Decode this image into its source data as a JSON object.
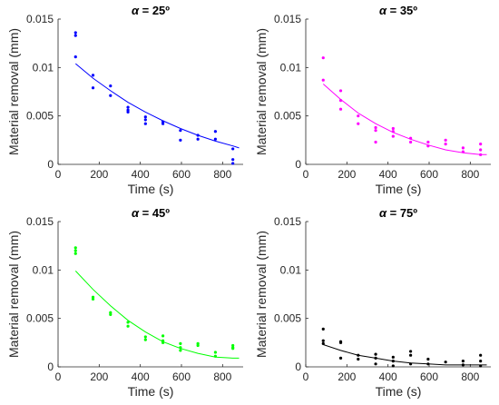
{
  "figure": {
    "background": "#ffffff"
  },
  "chart_data": [
    {
      "type": "scatter",
      "title": "α = 25º",
      "title_symbol": "α",
      "title_rest": " = 25º",
      "xlabel": "Time (s)",
      "ylabel": "Material removal (mm)",
      "xlim": [
        0,
        900
      ],
      "ylim": [
        0,
        0.015
      ],
      "xticks": [
        0,
        200,
        400,
        600,
        800
      ],
      "xtick_labels": [
        "0",
        "200",
        "400",
        "600",
        "800"
      ],
      "yticks": [
        0,
        0.005,
        0.01,
        0.015
      ],
      "ytick_labels": [
        "0",
        "0.005",
        "0.01",
        "0.015"
      ],
      "grid": false,
      "legend": "none",
      "color": "#0000ff",
      "series": [
        {
          "kind": "points",
          "x": [
            85,
            85,
            85,
            170,
            170,
            255,
            255,
            340,
            340,
            340,
            425,
            425,
            425,
            510,
            510,
            595,
            595,
            680,
            680,
            765,
            765,
            850,
            850,
            850
          ],
          "y": [
            0.0136,
            0.0133,
            0.0111,
            0.0092,
            0.0079,
            0.0081,
            0.0071,
            0.0059,
            0.0056,
            0.0054,
            0.0049,
            0.0046,
            0.0042,
            0.0044,
            0.0042,
            0.0035,
            0.0025,
            0.003,
            0.0026,
            0.0034,
            0.0026,
            0.0016,
            0.0005,
            0.0001
          ]
        },
        {
          "kind": "fit",
          "x": [
            85,
            170,
            255,
            340,
            425,
            510,
            595,
            680,
            765,
            850,
            880
          ],
          "y": [
            0.0104,
            0.0089,
            0.0076,
            0.0064,
            0.0054,
            0.0045,
            0.0037,
            0.003,
            0.0024,
            0.0019,
            0.0017
          ]
        }
      ]
    },
    {
      "type": "scatter",
      "title": "α = 35º",
      "title_symbol": "α",
      "title_rest": " = 35º",
      "xlabel": "Time (s)",
      "ylabel": "Material removal (mm)",
      "xlim": [
        0,
        900
      ],
      "ylim": [
        0,
        0.015
      ],
      "xticks": [
        0,
        200,
        400,
        600,
        800
      ],
      "xtick_labels": [
        "0",
        "200",
        "400",
        "600",
        "800"
      ],
      "yticks": [
        0,
        0.005,
        0.01,
        0.015
      ],
      "ytick_labels": [
        "0",
        "0.005",
        "0.01",
        "0.015"
      ],
      "grid": false,
      "legend": "none",
      "color": "#ff00ff",
      "series": [
        {
          "kind": "points",
          "x": [
            85,
            85,
            170,
            170,
            170,
            255,
            255,
            340,
            340,
            340,
            425,
            425,
            425,
            510,
            510,
            595,
            595,
            680,
            680,
            765,
            765,
            850,
            850,
            850
          ],
          "y": [
            0.011,
            0.0087,
            0.0076,
            0.0066,
            0.0057,
            0.005,
            0.0042,
            0.0038,
            0.0035,
            0.0023,
            0.0037,
            0.0034,
            0.0029,
            0.0027,
            0.0023,
            0.0023,
            0.0019,
            0.0025,
            0.0021,
            0.0017,
            0.0013,
            0.0021,
            0.0015,
            0.001
          ]
        },
        {
          "kind": "fit",
          "x": [
            85,
            170,
            255,
            340,
            425,
            510,
            595,
            680,
            765,
            850,
            880
          ],
          "y": [
            0.0083,
            0.0067,
            0.0053,
            0.0042,
            0.0033,
            0.0026,
            0.002,
            0.0015,
            0.0012,
            0.001,
            0.001
          ]
        }
      ]
    },
    {
      "type": "scatter",
      "title": "α = 45º",
      "title_symbol": "α",
      "title_rest": " = 45º",
      "xlabel": "Time (s)",
      "ylabel": "Material removal (mm)",
      "xlim": [
        0,
        900
      ],
      "ylim": [
        0,
        0.015
      ],
      "xticks": [
        0,
        200,
        400,
        600,
        800
      ],
      "xtick_labels": [
        "0",
        "200",
        "400",
        "600",
        "800"
      ],
      "yticks": [
        0,
        0.005,
        0.01,
        0.015
      ],
      "ytick_labels": [
        "0",
        "0.005",
        "0.01",
        "0.015"
      ],
      "grid": false,
      "legend": "none",
      "color": "#00ff00",
      "series": [
        {
          "kind": "points",
          "x": [
            85,
            85,
            85,
            170,
            170,
            255,
            255,
            340,
            340,
            425,
            425,
            510,
            510,
            510,
            595,
            595,
            595,
            680,
            680,
            765,
            765,
            850,
            850,
            850
          ],
          "y": [
            0.0123,
            0.012,
            0.0117,
            0.0072,
            0.007,
            0.0056,
            0.0054,
            0.0046,
            0.0042,
            0.0031,
            0.0028,
            0.0032,
            0.0027,
            0.0025,
            0.0024,
            0.002,
            0.0017,
            0.0024,
            0.0022,
            0.0015,
            0.0011,
            0.0022,
            0.002,
            0.0019
          ]
        },
        {
          "kind": "fit",
          "x": [
            85,
            170,
            255,
            340,
            425,
            510,
            595,
            680,
            765,
            850,
            880
          ],
          "y": [
            0.0099,
            0.008,
            0.0063,
            0.0048,
            0.0036,
            0.0026,
            0.0019,
            0.0014,
            0.001,
            0.0009,
            0.0009
          ]
        }
      ]
    },
    {
      "type": "scatter",
      "title": "α = 75º",
      "title_symbol": "α",
      "title_rest": " = 75º",
      "xlabel": "Time (s)",
      "ylabel": "Material removal (mm)",
      "xlim": [
        0,
        900
      ],
      "ylim": [
        0,
        0.015
      ],
      "xticks": [
        0,
        200,
        400,
        600,
        800
      ],
      "xtick_labels": [
        "0",
        "200",
        "400",
        "600",
        "800"
      ],
      "yticks": [
        0,
        0.005,
        0.01,
        0.015
      ],
      "ytick_labels": [
        "0",
        "0.005",
        "0.01",
        "0.015"
      ],
      "grid": false,
      "legend": "none",
      "color": "#000000",
      "series": [
        {
          "kind": "points",
          "x": [
            85,
            85,
            85,
            170,
            170,
            170,
            255,
            255,
            340,
            340,
            340,
            425,
            425,
            425,
            510,
            510,
            510,
            595,
            595,
            680,
            765,
            765,
            850,
            850,
            850
          ],
          "y": [
            0.0039,
            0.0027,
            0.0024,
            0.0026,
            0.0025,
            0.0009,
            0.0012,
            0.0008,
            0.0013,
            0.0009,
            0.0003,
            0.001,
            0.0006,
            0.0001,
            0.0016,
            0.0012,
            0.0003,
            0.0008,
            0.0003,
            0.0005,
            0.0006,
            0.0002,
            0.0012,
            0.0006,
            0.0001
          ]
        },
        {
          "kind": "fit",
          "x": [
            85,
            170,
            255,
            340,
            425,
            510,
            595,
            680,
            765,
            850,
            880
          ],
          "y": [
            0.0023,
            0.0017,
            0.0012,
            0.0009,
            0.0006,
            0.0004,
            0.0003,
            0.0002,
            0.0002,
            0.0002,
            0.0002
          ]
        }
      ]
    }
  ]
}
